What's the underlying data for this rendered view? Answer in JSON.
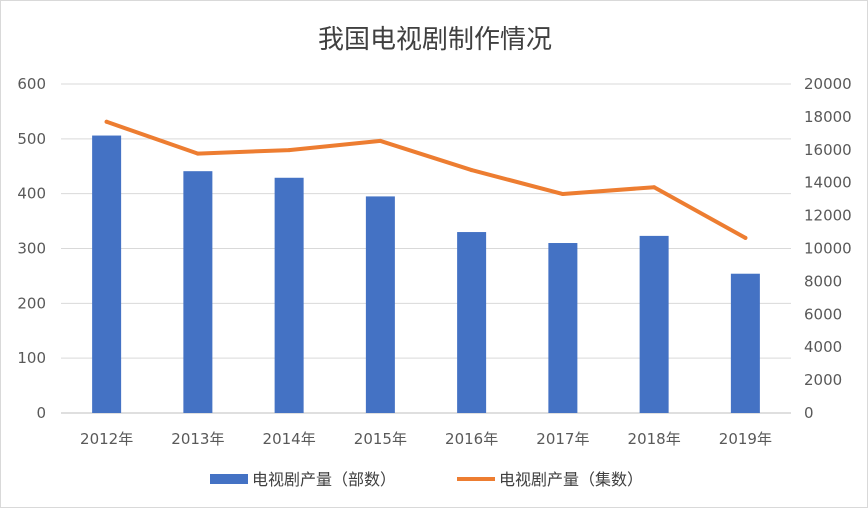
{
  "chart_data": {
    "type": "bar",
    "title": "我国电视剧制作情况",
    "categories": [
      "2012年",
      "2013年",
      "2014年",
      "2015年",
      "2016年",
      "2017年",
      "2018年",
      "2019年"
    ],
    "series": [
      {
        "name": "电视剧产量（部数）",
        "type": "bar",
        "axis": "left",
        "color": "#4472C4",
        "values": [
          506,
          441,
          429,
          395,
          330,
          310,
          323,
          254
        ]
      },
      {
        "name": "电视剧产量（集数）",
        "type": "line",
        "axis": "right",
        "color": "#ED7D31",
        "values": [
          17703,
          15770,
          15983,
          16540,
          14768,
          13310,
          13726,
          10646
        ]
      }
    ],
    "ylim": [
      0,
      600
    ],
    "y_ticks": [
      "0",
      "100",
      "200",
      "300",
      "400",
      "500",
      "600"
    ],
    "y2lim": [
      0,
      20000
    ],
    "y2_ticks": [
      "0",
      "2000",
      "4000",
      "6000",
      "8000",
      "10000",
      "12000",
      "14000",
      "16000",
      "18000",
      "20000"
    ],
    "grid": true,
    "legend_position": "bottom"
  }
}
